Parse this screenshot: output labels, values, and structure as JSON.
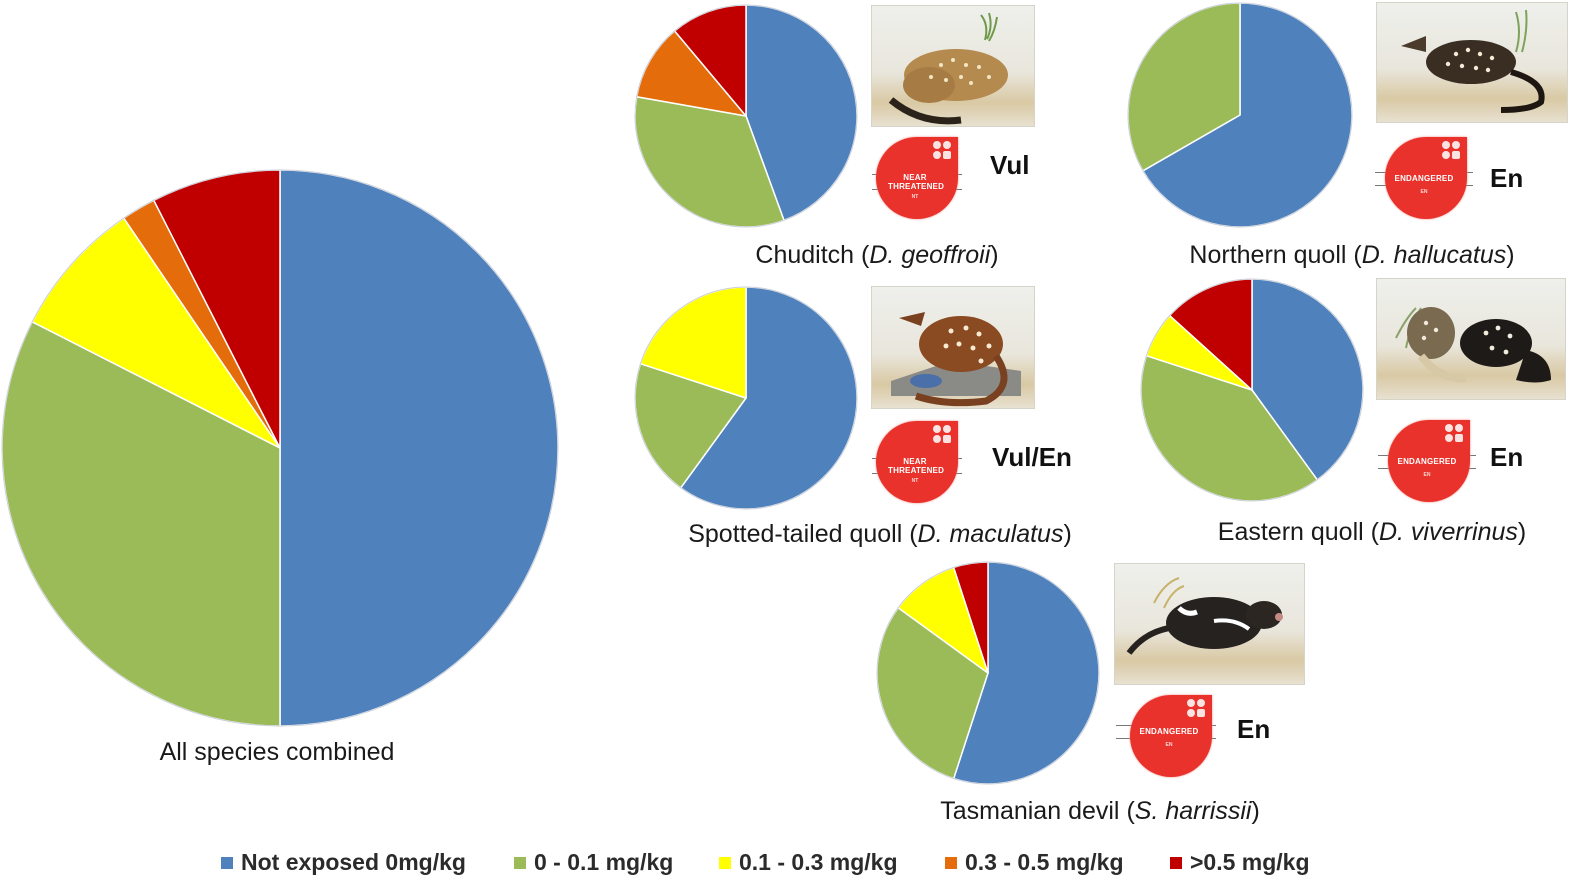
{
  "chart_data": {
    "type": "pie",
    "title": "",
    "legend_position": "bottom",
    "categories": [
      "Not exposed 0mg/kg",
      "0 - 0.1 mg/kg",
      "0.1 - 0.3 mg/kg",
      "0.3 - 0.5 mg/kg",
      ">0.5 mg/kg"
    ],
    "colors": [
      "#4f81bd",
      "#9bbb59",
      "#ffff00",
      "#e46c0a",
      "#c00000"
    ],
    "units": "percent of individuals",
    "charts": [
      {
        "id": "all",
        "label": "All species combined",
        "species_common": "All species combined",
        "species_latin": "",
        "values": [
          50.0,
          32.5,
          8.0,
          2.0,
          7.5
        ]
      },
      {
        "id": "chuditch",
        "species_common": "Chuditch",
        "species_latin": "D. geoffroii",
        "values": [
          44.4,
          33.3,
          0,
          11.1,
          11.1
        ],
        "iucn_status": "NEAR THREATENED",
        "iucn_code": "NT",
        "national_status": "Vul"
      },
      {
        "id": "northern",
        "species_common": "Northern quoll",
        "species_latin": "D. hallucatus",
        "values": [
          66.7,
          33.3,
          0,
          0,
          0
        ],
        "iucn_status": "ENDANGERED",
        "iucn_code": "EN",
        "national_status": "En"
      },
      {
        "id": "spotted",
        "species_common": "Spotted-tailed quoll",
        "species_latin": "D. maculatus",
        "values": [
          60.0,
          20.0,
          20.0,
          0,
          0
        ],
        "iucn_status": "NEAR THREATENED",
        "iucn_code": "NT",
        "national_status": "Vul/En"
      },
      {
        "id": "eastern",
        "species_common": "Eastern quoll",
        "species_latin": "D. viverrinus",
        "values": [
          40.0,
          40.0,
          6.7,
          0,
          13.3
        ],
        "iucn_status": "ENDANGERED",
        "iucn_code": "EN",
        "national_status": "En"
      },
      {
        "id": "devil",
        "species_common": "Tasmanian devil",
        "species_latin": "S. harrissii",
        "values": [
          55.0,
          30.0,
          10.0,
          0,
          5.0
        ],
        "iucn_status": "ENDANGERED",
        "iucn_code": "EN",
        "national_status": "En"
      }
    ]
  },
  "legend": [
    {
      "label": "Not exposed 0mg/kg",
      "color": "#4f81bd"
    },
    {
      "label": "0 - 0.1 mg/kg",
      "color": "#9bbb59"
    },
    {
      "label": "0.1 - 0.3 mg/kg",
      "color": "#ffff00"
    },
    {
      "label": "0.3 - 0.5 mg/kg",
      "color": "#e46c0a"
    },
    {
      "label": ">0.5 mg/kg",
      "color": "#c00000"
    }
  ],
  "illustrations": {
    "chuditch": "chuditch-illustration",
    "northern": "northern-quoll-illustration",
    "spotted": "spotted-tailed-quoll-illustration",
    "eastern": "eastern-quoll-illustration",
    "devil": "tasmanian-devil-illustration"
  },
  "badge_icon": "iucn-red-list-badge-icon",
  "text": {
    "open_paren": "(",
    "close_paren": ")"
  }
}
